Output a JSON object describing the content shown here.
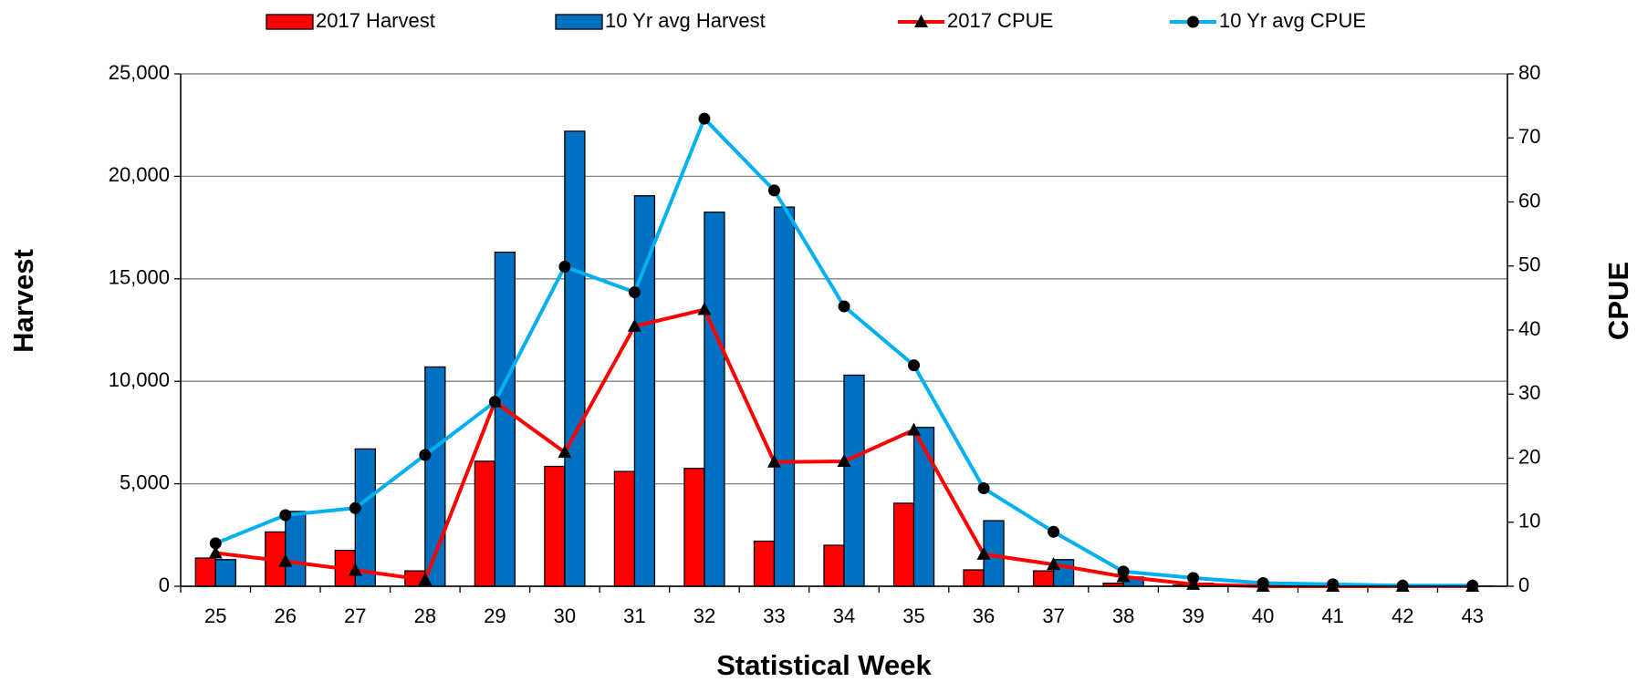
{
  "chart_data": {
    "type": "bar_line",
    "xlabel": "Statistical Week",
    "ylabel": "Harvest",
    "y2label": "CPUE",
    "categories": [
      "25",
      "26",
      "27",
      "28",
      "29",
      "30",
      "31",
      "32",
      "33",
      "34",
      "35",
      "36",
      "37",
      "38",
      "39",
      "40",
      "41",
      "42",
      "43"
    ],
    "series": [
      {
        "name": "2017 Harvest",
        "type": "bar",
        "color": "#ff0000",
        "values": [
          1375,
          2650,
          1750,
          750,
          6100,
          5850,
          5600,
          5750,
          2200,
          2000,
          4050,
          800,
          750,
          150,
          50,
          10,
          0,
          0,
          0
        ]
      },
      {
        "name": "10 Yr avg Harvest",
        "type": "bar",
        "color": "#0070c0",
        "values": [
          1300,
          3650,
          6700,
          10700,
          16300,
          22200,
          19050,
          18250,
          18500,
          10300,
          7750,
          3200,
          1300,
          450,
          150,
          50,
          20,
          10,
          10
        ]
      },
      {
        "name": "2017 CPUE",
        "type": "line",
        "axis": "y2",
        "color": "#ff0000",
        "marker": "triangle",
        "values": [
          5.2,
          3.9,
          2.5,
          1,
          28.8,
          20.9,
          40.6,
          43.2,
          19.4,
          19.5,
          24.4,
          5,
          3.4,
          1.5,
          0.3,
          0,
          0,
          0,
          0
        ]
      },
      {
        "name": "10 Yr avg CPUE",
        "type": "line",
        "axis": "y2",
        "color": "#00b0f0",
        "marker": "circle",
        "values": [
          6.7,
          11.1,
          12.2,
          20.5,
          28.8,
          49.9,
          45.9,
          73,
          61.8,
          43.7,
          34.5,
          15.3,
          8.5,
          2.3,
          1.3,
          0.5,
          0.3,
          0.1,
          0.1
        ]
      }
    ],
    "ylim": [
      0,
      25000
    ],
    "yticks": [
      0,
      {
        "value": 5000,
        "label": "5,000"
      },
      {
        "value": 10000,
        "label": "10,000"
      },
      {
        "value": 15000,
        "label": "15,000"
      },
      {
        "value": 20000,
        "label": "20,000"
      },
      {
        "value": 25000,
        "label": "25,000"
      }
    ],
    "y2lim": [
      0,
      80
    ],
    "y2ticks": [
      0,
      10,
      20,
      30,
      40,
      50,
      60,
      70,
      80
    ],
    "grid": true,
    "legend": "top"
  }
}
